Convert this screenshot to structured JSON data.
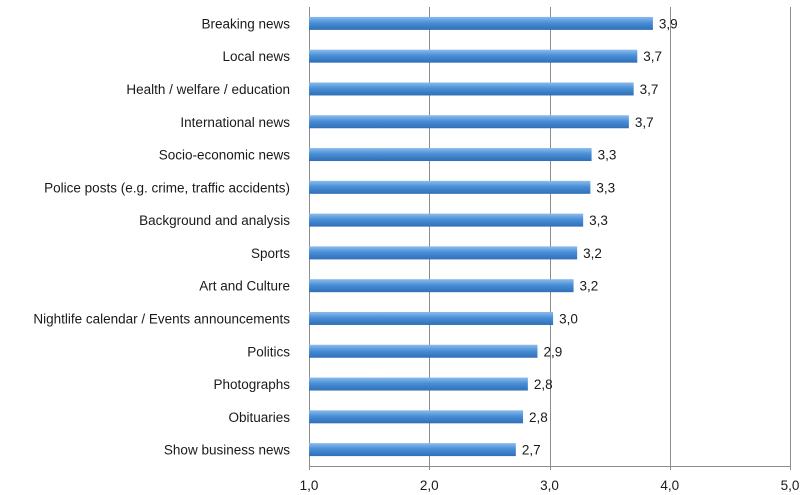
{
  "chart_data": {
    "type": "bar",
    "orientation": "horizontal",
    "categories": [
      "Breaking news",
      "Local news",
      "Health / welfare / education",
      "International news",
      "Socio-economic news",
      "Police posts (e.g. crime, traffic accidents)",
      "Background and analysis",
      "Sports",
      "Art and Culture",
      "Nightlife calendar / Events announcements",
      "Politics",
      "Photographs",
      "Obituaries",
      "Show business news"
    ],
    "values": [
      3.86,
      3.73,
      3.7,
      3.66,
      3.35,
      3.34,
      3.28,
      3.23,
      3.2,
      3.03,
      2.9,
      2.82,
      2.78,
      2.72
    ],
    "value_labels": [
      "3,9",
      "3,7",
      "3,7",
      "3,7",
      "3,3",
      "3,3",
      "3,3",
      "3,2",
      "3,2",
      "3,0",
      "2,9",
      "2,8",
      "2,8",
      "2,7"
    ],
    "xlim": [
      1.0,
      5.0
    ],
    "xticks": [
      1.0,
      2.0,
      3.0,
      4.0,
      5.0
    ],
    "xtick_labels": [
      "1,0",
      "2,0",
      "3,0",
      "4,0",
      "5,0"
    ],
    "grid": "vertical",
    "legend": "none",
    "bar_color": "#4a8fd6",
    "bar_color_light": "#8cbcec",
    "bar_color_dark": "#2f6fb8"
  }
}
